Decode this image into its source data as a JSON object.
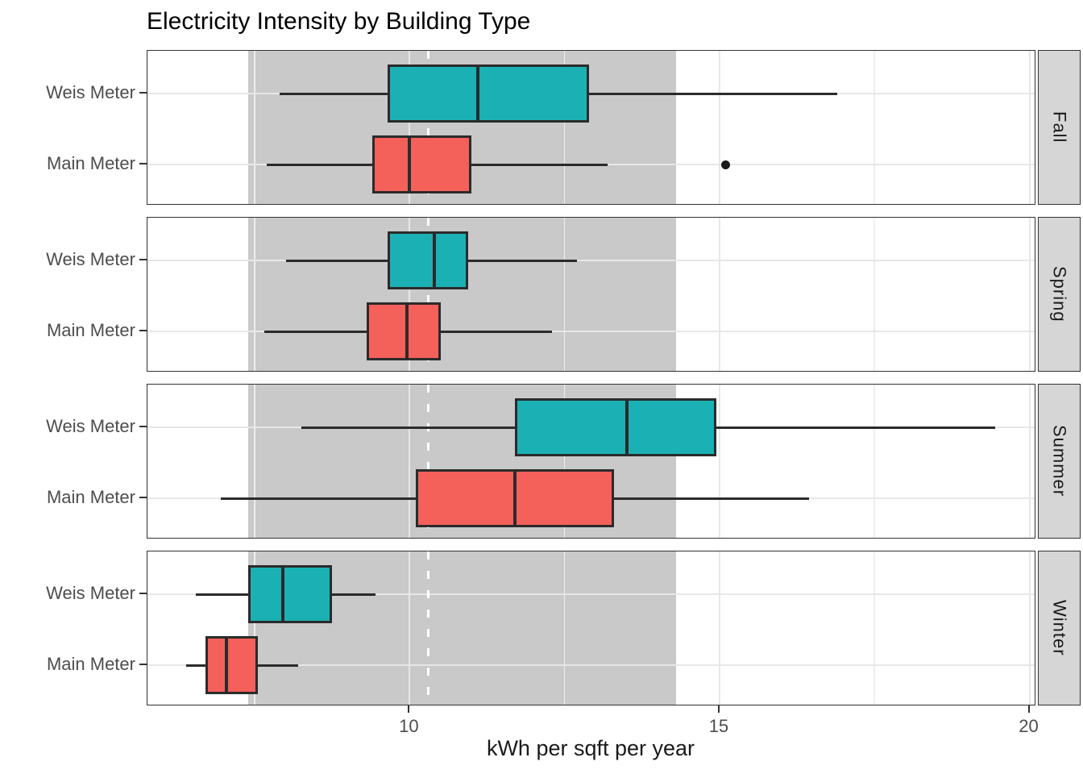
{
  "title": "Electricity Intensity by Building Type",
  "xlabel": "kWh per sqft per year",
  "chart_data": {
    "type": "boxplot",
    "orientation": "horizontal",
    "title": "Electricity Intensity by Building Type",
    "xlabel": "kWh per sqft per year",
    "x_axis": {
      "range": [
        5.77,
        20.11
      ],
      "ticks": [
        10,
        15,
        20
      ],
      "minor_ticks": [
        7.5,
        12.5,
        17.5
      ]
    },
    "categories": [
      "Weis Meter",
      "Main Meter"
    ],
    "facets": [
      {
        "label": "Fall",
        "boxes": [
          {
            "category": "Weis Meter",
            "series": "weis",
            "whisker_low": 7.9,
            "q1": 9.65,
            "median": 11.1,
            "q3": 12.9,
            "whisker_high": 16.9,
            "outliers": []
          },
          {
            "category": "Main Meter",
            "series": "main",
            "whisker_low": 7.7,
            "q1": 9.4,
            "median": 10.0,
            "q3": 11.0,
            "whisker_high": 13.2,
            "outliers": [
              15.1
            ]
          }
        ]
      },
      {
        "label": "Spring",
        "boxes": [
          {
            "category": "Weis Meter",
            "series": "weis",
            "whisker_low": 8.0,
            "q1": 9.65,
            "median": 10.4,
            "q3": 10.95,
            "whisker_high": 12.7,
            "outliers": []
          },
          {
            "category": "Main Meter",
            "series": "main",
            "whisker_low": 7.65,
            "q1": 9.3,
            "median": 9.95,
            "q3": 10.5,
            "whisker_high": 12.3,
            "outliers": []
          }
        ]
      },
      {
        "label": "Summer",
        "boxes": [
          {
            "category": "Weis Meter",
            "series": "weis",
            "whisker_low": 8.25,
            "q1": 11.7,
            "median": 13.5,
            "q3": 14.95,
            "whisker_high": 19.45,
            "outliers": []
          },
          {
            "category": "Main Meter",
            "series": "main",
            "whisker_low": 6.95,
            "q1": 10.1,
            "median": 11.7,
            "q3": 13.3,
            "whisker_high": 16.45,
            "outliers": []
          }
        ]
      },
      {
        "label": "Winter",
        "boxes": [
          {
            "category": "Weis Meter",
            "series": "weis",
            "whisker_low": 6.55,
            "q1": 7.4,
            "median": 7.95,
            "q3": 8.75,
            "whisker_high": 9.45,
            "outliers": []
          },
          {
            "category": "Main Meter",
            "series": "main",
            "whisker_low": 6.4,
            "q1": 6.7,
            "median": 7.05,
            "q3": 7.55,
            "whisker_high": 8.2,
            "outliers": []
          }
        ]
      }
    ],
    "reference_band": {
      "from": 7.4,
      "to": 14.3
    },
    "reference_line": {
      "x": 10.3,
      "style": "dashed"
    },
    "colors": {
      "weis_fill": "#1BB1B4",
      "main_fill": "#F4605A",
      "box_border": "#2B2B2B",
      "band": "#C9C9C9",
      "strip_bg": "#D6D6D6",
      "panel_border": "#333333",
      "grid_major": "#E7E7E7",
      "grid_minor": "#EFEFEF",
      "axis_text": "#4D4D4D",
      "reference_line_color": "#FFFFFF",
      "outlier": "#1A1A1A"
    }
  }
}
